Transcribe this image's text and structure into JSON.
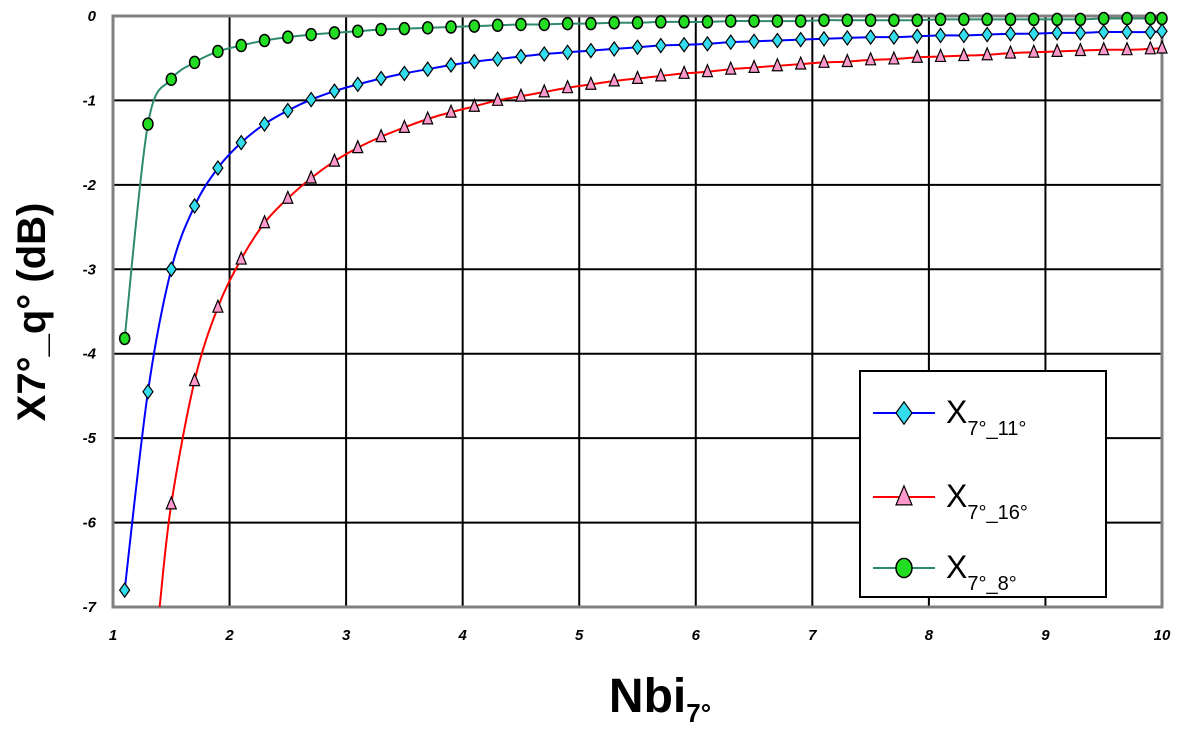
{
  "chart_data": {
    "type": "line",
    "xlabel": {
      "main": "Nbi",
      "sub": "7°"
    },
    "ylabel": "X7°_q° (dB)",
    "xlim": [
      1,
      10
    ],
    "ylim": [
      -7,
      0
    ],
    "x_ticks": [
      "1",
      "2",
      "3",
      "4",
      "5",
      "6",
      "7",
      "8",
      "9",
      "10"
    ],
    "y_ticks": [
      "0",
      "-1",
      "-2",
      "-3",
      "-4",
      "-5",
      "-6",
      "-7"
    ],
    "grid": true,
    "legend_position": "lower-right",
    "series": [
      {
        "name": "X_11",
        "legend": {
          "main": "X",
          "sub": "7°_11°"
        },
        "line_color": "#0000ff",
        "marker": "diamond",
        "marker_fill": "#33ddee",
        "points": [
          [
            1.1,
            -6.8
          ],
          [
            1.3,
            -4.45
          ],
          [
            1.5,
            -3.0
          ],
          [
            1.7,
            -2.25
          ],
          [
            1.9,
            -1.8
          ],
          [
            2.1,
            -1.5
          ],
          [
            2.3,
            -1.28
          ],
          [
            2.5,
            -1.12
          ],
          [
            2.7,
            -0.99
          ],
          [
            2.9,
            -0.89
          ],
          [
            3.1,
            -0.81
          ],
          [
            3.3,
            -0.74
          ],
          [
            3.5,
            -0.68
          ],
          [
            3.7,
            -0.63
          ],
          [
            3.9,
            -0.58
          ],
          [
            4.1,
            -0.54
          ],
          [
            4.3,
            -0.51
          ],
          [
            4.5,
            -0.48
          ],
          [
            4.7,
            -0.45
          ],
          [
            4.9,
            -0.43
          ],
          [
            5.1,
            -0.41
          ],
          [
            5.3,
            -0.39
          ],
          [
            5.5,
            -0.37
          ],
          [
            5.7,
            -0.35
          ],
          [
            5.9,
            -0.34
          ],
          [
            6.1,
            -0.33
          ],
          [
            6.3,
            -0.31
          ],
          [
            6.5,
            -0.3
          ],
          [
            6.7,
            -0.29
          ],
          [
            6.9,
            -0.28
          ],
          [
            7.1,
            -0.27
          ],
          [
            7.3,
            -0.26
          ],
          [
            7.5,
            -0.25
          ],
          [
            7.7,
            -0.25
          ],
          [
            7.9,
            -0.24
          ],
          [
            8.1,
            -0.23
          ],
          [
            8.3,
            -0.23
          ],
          [
            8.5,
            -0.22
          ],
          [
            8.7,
            -0.21
          ],
          [
            8.9,
            -0.21
          ],
          [
            9.1,
            -0.2
          ],
          [
            9.3,
            -0.2
          ],
          [
            9.5,
            -0.19
          ],
          [
            9.7,
            -0.19
          ],
          [
            9.9,
            -0.19
          ],
          [
            10.0,
            -0.18
          ]
        ]
      },
      {
        "name": "X_16",
        "legend": {
          "main": "X",
          "sub": "7°_16°"
        },
        "line_color": "#ff0000",
        "marker": "triangle",
        "marker_fill": "#ff99cc",
        "line_start": [
          1.4,
          -7.0
        ],
        "points": [
          [
            1.5,
            -5.78
          ],
          [
            1.7,
            -4.32
          ],
          [
            1.9,
            -3.45
          ],
          [
            2.1,
            -2.88
          ],
          [
            2.3,
            -2.45
          ],
          [
            2.5,
            -2.16
          ],
          [
            2.7,
            -1.92
          ],
          [
            2.9,
            -1.72
          ],
          [
            3.1,
            -1.56
          ],
          [
            3.3,
            -1.43
          ],
          [
            3.5,
            -1.32
          ],
          [
            3.7,
            -1.22
          ],
          [
            3.9,
            -1.14
          ],
          [
            4.1,
            -1.07
          ],
          [
            4.3,
            -1.0
          ],
          [
            4.5,
            -0.95
          ],
          [
            4.7,
            -0.9
          ],
          [
            4.9,
            -0.85
          ],
          [
            5.1,
            -0.81
          ],
          [
            5.3,
            -0.77
          ],
          [
            5.5,
            -0.74
          ],
          [
            5.7,
            -0.71
          ],
          [
            5.9,
            -0.68
          ],
          [
            6.1,
            -0.66
          ],
          [
            6.3,
            -0.63
          ],
          [
            6.5,
            -0.61
          ],
          [
            6.7,
            -0.59
          ],
          [
            6.9,
            -0.57
          ],
          [
            7.1,
            -0.55
          ],
          [
            7.3,
            -0.54
          ],
          [
            7.5,
            -0.52
          ],
          [
            7.7,
            -0.51
          ],
          [
            7.9,
            -0.49
          ],
          [
            8.1,
            -0.48
          ],
          [
            8.3,
            -0.47
          ],
          [
            8.5,
            -0.46
          ],
          [
            8.7,
            -0.44
          ],
          [
            8.9,
            -0.43
          ],
          [
            9.1,
            -0.42
          ],
          [
            9.3,
            -0.41
          ],
          [
            9.5,
            -0.4
          ],
          [
            9.7,
            -0.4
          ],
          [
            9.9,
            -0.39
          ],
          [
            10.0,
            -0.38
          ]
        ]
      },
      {
        "name": "X_8",
        "legend": {
          "main": "X",
          "sub": "7°_8°"
        },
        "line_color": "#2e8b6e",
        "marker": "circle",
        "marker_fill": "#22dd22",
        "points": [
          [
            1.1,
            -3.82
          ],
          [
            1.3,
            -1.28
          ],
          [
            1.5,
            -0.75
          ],
          [
            1.7,
            -0.55
          ],
          [
            1.9,
            -0.42
          ],
          [
            2.1,
            -0.35
          ],
          [
            2.3,
            -0.29
          ],
          [
            2.5,
            -0.25
          ],
          [
            2.7,
            -0.22
          ],
          [
            2.9,
            -0.2
          ],
          [
            3.1,
            -0.18
          ],
          [
            3.3,
            -0.16
          ],
          [
            3.5,
            -0.15
          ],
          [
            3.7,
            -0.14
          ],
          [
            3.9,
            -0.13
          ],
          [
            4.1,
            -0.12
          ],
          [
            4.3,
            -0.11
          ],
          [
            4.5,
            -0.1
          ],
          [
            4.7,
            -0.1
          ],
          [
            4.9,
            -0.09
          ],
          [
            5.1,
            -0.09
          ],
          [
            5.3,
            -0.08
          ],
          [
            5.5,
            -0.08
          ],
          [
            5.7,
            -0.07
          ],
          [
            5.9,
            -0.07
          ],
          [
            6.1,
            -0.07
          ],
          [
            6.3,
            -0.06
          ],
          [
            6.5,
            -0.06
          ],
          [
            6.7,
            -0.06
          ],
          [
            6.9,
            -0.06
          ],
          [
            7.1,
            -0.05
          ],
          [
            7.3,
            -0.05
          ],
          [
            7.5,
            -0.05
          ],
          [
            7.7,
            -0.05
          ],
          [
            7.9,
            -0.05
          ],
          [
            8.1,
            -0.04
          ],
          [
            8.3,
            -0.04
          ],
          [
            8.5,
            -0.04
          ],
          [
            8.7,
            -0.04
          ],
          [
            8.9,
            -0.04
          ],
          [
            9.1,
            -0.04
          ],
          [
            9.3,
            -0.04
          ],
          [
            9.5,
            -0.03
          ],
          [
            9.7,
            -0.03
          ],
          [
            9.9,
            -0.03
          ],
          [
            10.0,
            -0.03
          ]
        ]
      }
    ]
  }
}
